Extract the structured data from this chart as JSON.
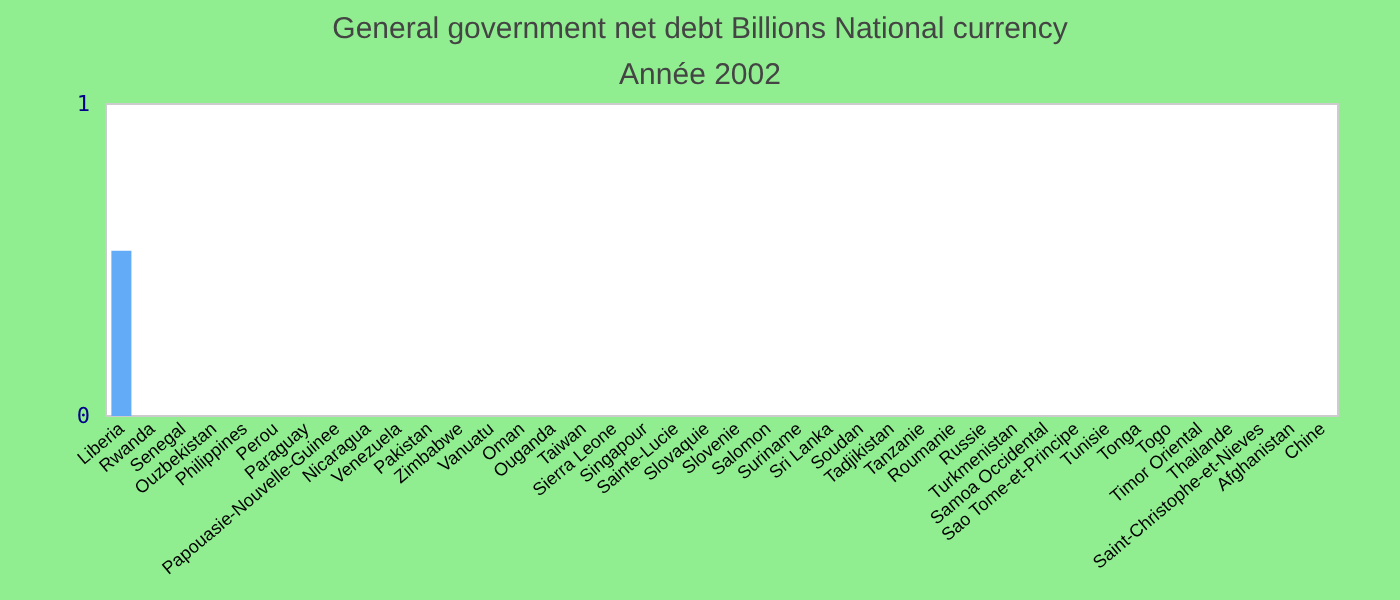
{
  "chart_data": {
    "type": "bar",
    "title": "General government net debt Billions National currency",
    "subtitle": "Année 2002",
    "categories": [
      "Liberia",
      "Rwanda",
      "Senegal",
      "Ouzbekistan",
      "Philippines",
      "Perou",
      "Paraguay",
      "Papouasie-Nouvelle-Guinee",
      "Nicaragua",
      "Venezuela",
      "Pakistan",
      "Zimbabwe",
      "Vanuatu",
      "Oman",
      "Ouganda",
      "Taiwan",
      "Sierra Leone",
      "Singapour",
      "Sainte-Lucie",
      "Slovaquie",
      "Slovenie",
      "Salomon",
      "Suriname",
      "Sri Lanka",
      "Soudan",
      "Tadjikistan",
      "Tanzanie",
      "Roumanie",
      "Russie",
      "Turkmenistan",
      "Samoa Occidental",
      "Sao Tome-et-Principe",
      "Tunisie",
      "Tonga",
      "Togo",
      "Timor Oriental",
      "Thailande",
      "Saint-Christophe-et-Nieves",
      "Afghanistan",
      "Chine"
    ],
    "values": [
      0.53,
      0,
      0,
      0,
      0,
      0,
      0,
      0,
      0,
      0,
      0,
      0,
      0,
      0,
      0,
      0,
      0,
      0,
      0,
      0,
      0,
      0,
      0,
      0,
      0,
      0,
      0,
      0,
      0,
      0,
      0,
      0,
      0,
      0,
      0,
      0,
      0,
      0,
      0,
      0
    ],
    "color": "#63aaf7",
    "ylim": [
      0,
      1
    ],
    "yticks": [
      0,
      1
    ],
    "grid": false
  }
}
